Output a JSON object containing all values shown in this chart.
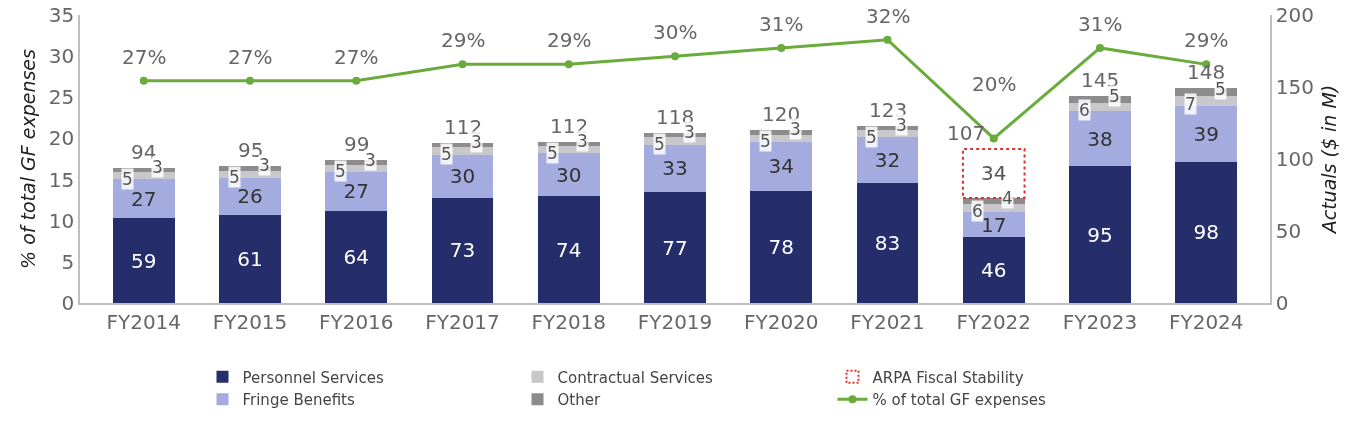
{
  "chart_data": {
    "type": "bar",
    "stacked": true,
    "ylabel": "% of total GF expenses",
    "y2label": "Actuals ($ in M)",
    "categories": [
      "FY2014",
      "FY2015",
      "FY2016",
      "FY2017",
      "FY2018",
      "FY2019",
      "FY2020",
      "FY2021",
      "FY2022",
      "FY2023",
      "FY2024"
    ],
    "series": [
      {
        "name": "Personnel Services",
        "color": "#252e6b",
        "axis": "y2",
        "values": [
          59,
          61,
          64,
          73,
          74,
          77,
          78,
          83,
          46,
          95,
          98
        ]
      },
      {
        "name": "Fringe Benefits",
        "color": "#a4acdf",
        "axis": "y2",
        "values": [
          27,
          26,
          27,
          30,
          30,
          33,
          34,
          32,
          17,
          38,
          39
        ]
      },
      {
        "name": "Contractual Services",
        "color": "#c8c8cc",
        "axis": "y2",
        "values": [
          5,
          5,
          5,
          5,
          5,
          5,
          5,
          5,
          6,
          6,
          7
        ]
      },
      {
        "name": "Other",
        "color": "#8c8c8c",
        "axis": "y2",
        "values": [
          3,
          3,
          3,
          3,
          3,
          3,
          3,
          3,
          4,
          5,
          5
        ]
      },
      {
        "name": "ARPA Fiscal Stability",
        "color": "#e03030",
        "axis": "y2",
        "line_style": "dotted",
        "values": [
          null,
          null,
          null,
          null,
          null,
          null,
          null,
          null,
          34,
          null,
          null
        ]
      },
      {
        "name": "% of total GF expenses",
        "type": "line",
        "color": "#6aab3e",
        "axis": "y",
        "marker": "circle",
        "values": [
          27,
          27,
          27,
          29,
          29,
          30,
          31,
          32,
          20,
          31,
          29
        ],
        "value_labels": [
          "27%",
          "27%",
          "27%",
          "29%",
          "29%",
          "30%",
          "31%",
          "32%",
          "20%",
          "31%",
          "29%"
        ]
      }
    ],
    "data_labels": true,
    "totals": [
      "94",
      "95",
      "99",
      "112",
      "112",
      "118",
      "120",
      "123",
      "107",
      "145",
      "148"
    ],
    "ylim": [
      0,
      35
    ],
    "yticks": [
      0,
      5,
      10,
      15,
      20,
      25,
      30,
      35
    ],
    "y2lim": [
      0,
      200
    ],
    "y2ticks": [
      0,
      50,
      100,
      150,
      200
    ],
    "grid": false,
    "legend": "bottom"
  }
}
